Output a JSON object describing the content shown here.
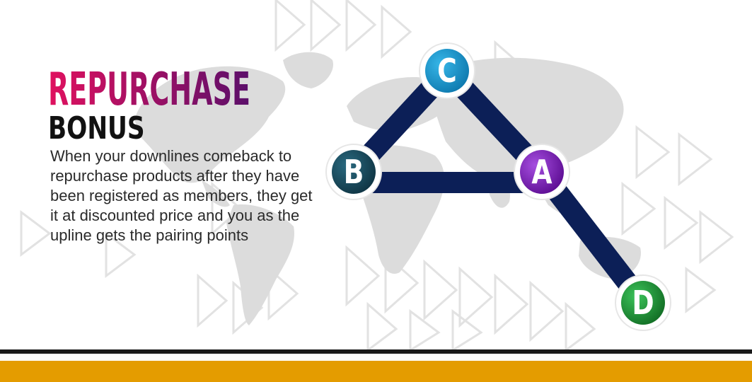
{
  "title": {
    "line1": "REPURCHASE",
    "line2": "BONUS"
  },
  "description": "When your downlines comeback to repurchase products after they have been registered as members, they get it at discounted price and you as the upline gets the pairing points",
  "nodes": {
    "a": {
      "label": "A",
      "color": "#7b1fb5"
    },
    "b": {
      "label": "B",
      "color": "#174a5c"
    },
    "c": {
      "label": "C",
      "color": "#1794cc"
    },
    "d": {
      "label": "D",
      "color": "#1f8f34"
    }
  },
  "colors": {
    "title_gradient_start": "#e0115f",
    "title_gradient_end": "#5b0f6a",
    "connector": "#0c1f57",
    "footer_bar": "#e49c00",
    "footer_line": "#1a1a1a"
  }
}
